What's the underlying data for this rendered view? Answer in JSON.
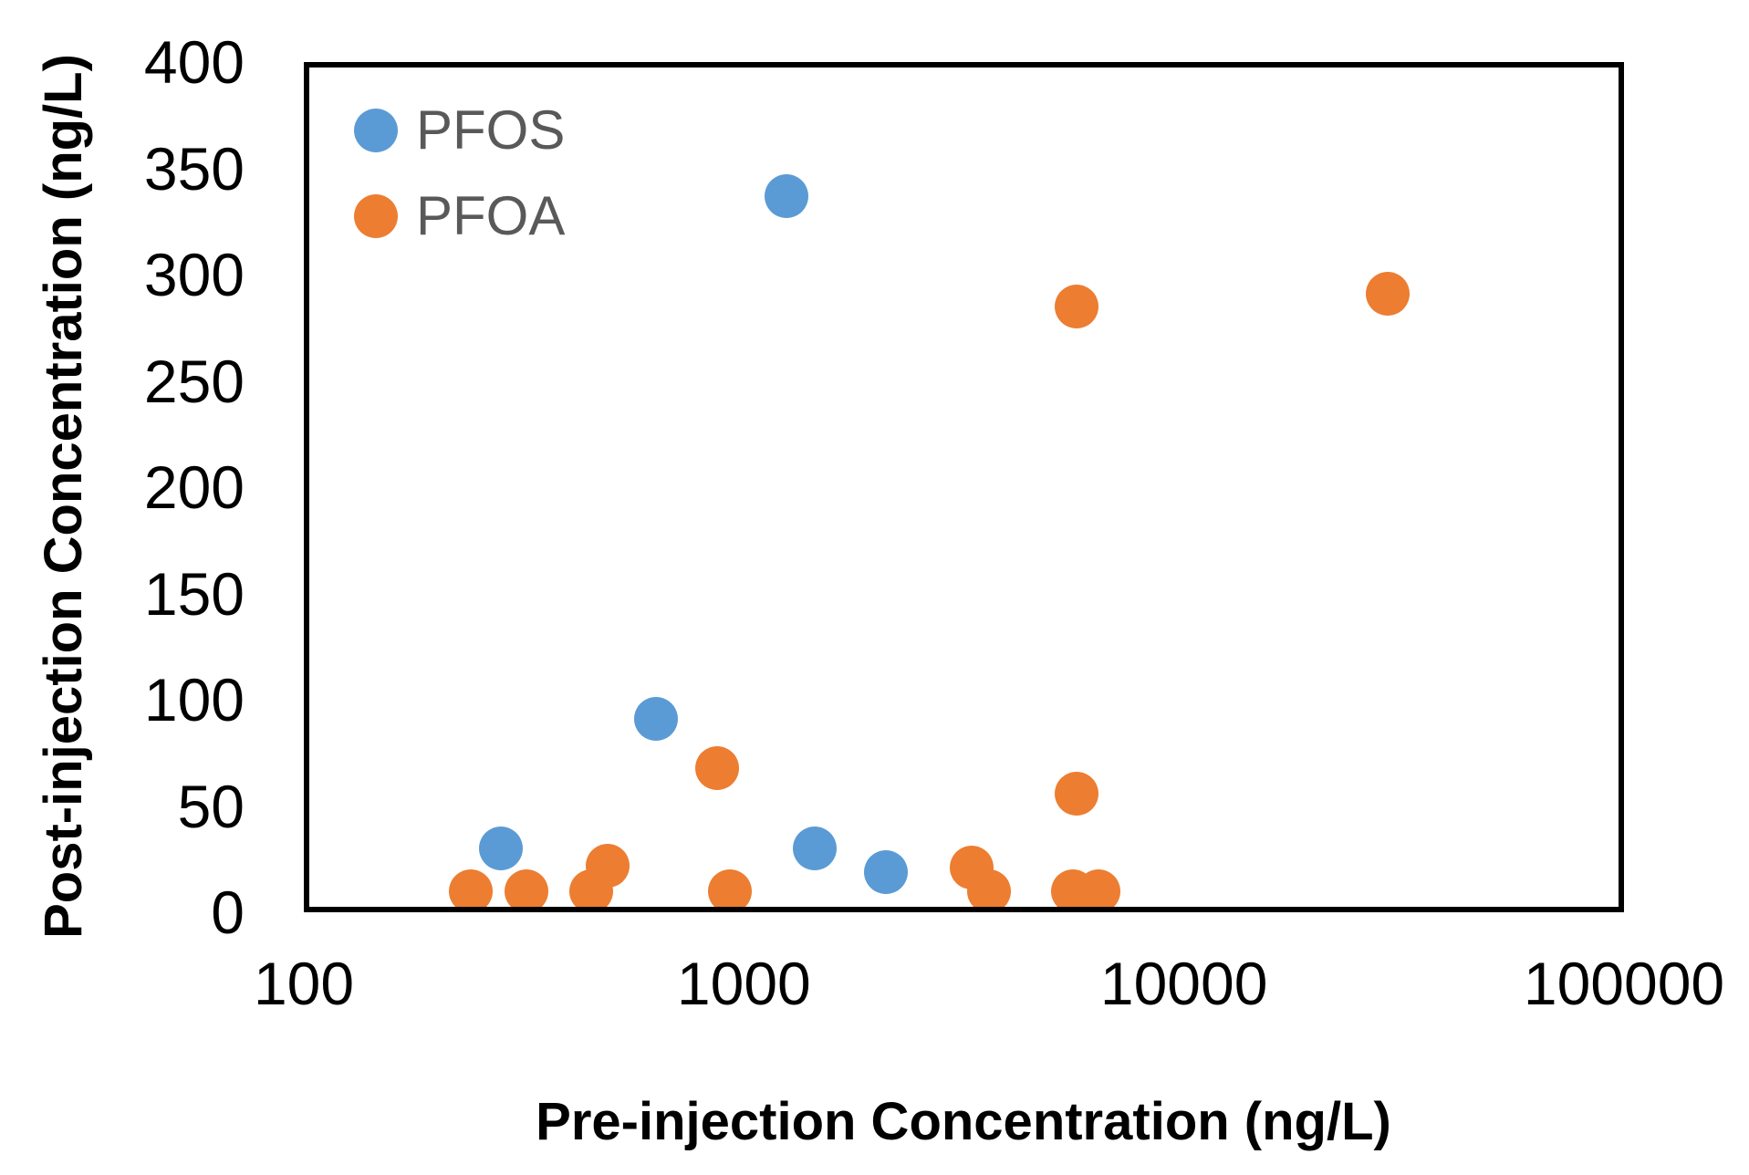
{
  "chart_data": {
    "type": "scatter",
    "title": "",
    "xlabel": "Pre-injection Concentration (ng/L)",
    "ylabel": "Post-injection Concentration (ng/L)",
    "x_scale": "log",
    "y_scale": "linear",
    "xlim": [
      100,
      100000
    ],
    "ylim": [
      0,
      400
    ],
    "x_ticks": [
      100,
      1000,
      10000,
      100000
    ],
    "y_ticks": [
      0,
      50,
      100,
      150,
      200,
      250,
      300,
      350,
      400
    ],
    "grid": false,
    "legend_position": "inside-top-left",
    "series": [
      {
        "name": "PFOS",
        "color": "#5B9BD5",
        "points": [
          [
            1250,
            337
          ],
          [
            630,
            91
          ],
          [
            280,
            30
          ],
          [
            1450,
            30
          ],
          [
            2100,
            19
          ]
        ]
      },
      {
        "name": "PFOA",
        "color": "#ED7D31",
        "points": [
          [
            5700,
            285
          ],
          [
            29000,
            291
          ],
          [
            870,
            68
          ],
          [
            240,
            10
          ],
          [
            320,
            10
          ],
          [
            450,
            10
          ],
          [
            490,
            22
          ],
          [
            930,
            10
          ],
          [
            3300,
            21
          ],
          [
            3600,
            10
          ],
          [
            5700,
            56
          ],
          [
            5600,
            10
          ],
          [
            6400,
            10
          ]
        ]
      }
    ]
  },
  "colors": {
    "axis_text": "#000000",
    "legend_text": "#595959",
    "plot_border": "#000000",
    "background": "#ffffff"
  }
}
